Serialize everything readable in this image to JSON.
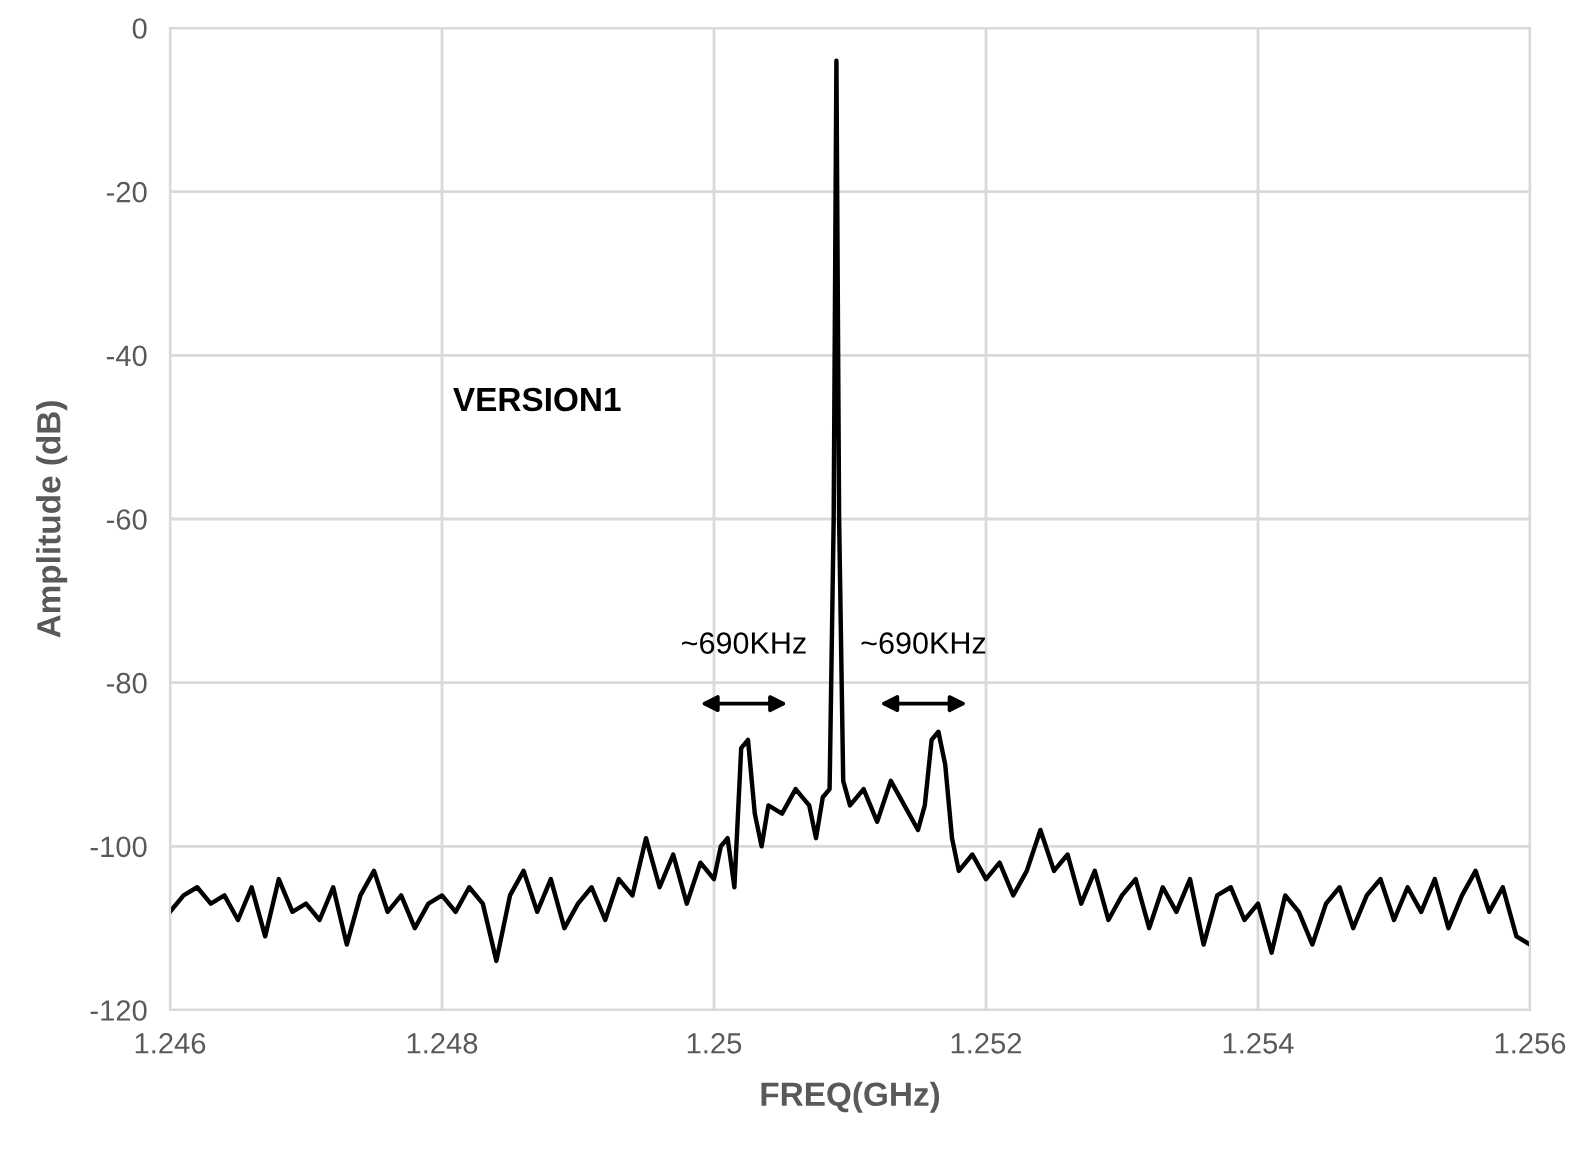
{
  "chart_data": {
    "type": "line",
    "xlabel": "FREQ(GHz)",
    "ylabel": "Amplitude (dB)",
    "annotations": [
      "VERSION1",
      "~690KHz",
      "~690KHz"
    ],
    "series": [
      {
        "color": "#000000",
        "x": [
          1.246,
          1.2461,
          1.2462,
          1.2463,
          1.2464,
          1.2465,
          1.2466,
          1.2467,
          1.2468,
          1.2469,
          1.247,
          1.2471,
          1.2472,
          1.2473,
          1.2474,
          1.2475,
          1.2476,
          1.2477,
          1.2478,
          1.2479,
          1.248,
          1.2481,
          1.2482,
          1.2483,
          1.2484,
          1.2485,
          1.2486,
          1.2487,
          1.2488,
          1.2489,
          1.249,
          1.2491,
          1.2492,
          1.2493,
          1.2494,
          1.2495,
          1.2496,
          1.2497,
          1.2498,
          1.2499,
          1.25,
          1.25005,
          1.2501,
          1.25015,
          1.2502,
          1.25025,
          1.2503,
          1.25035,
          1.2504,
          1.2505,
          1.2506,
          1.2507,
          1.25075,
          1.2508,
          1.25085,
          1.25088,
          1.2509,
          1.25092,
          1.25095,
          1.251,
          1.2511,
          1.2512,
          1.2513,
          1.2514,
          1.2515,
          1.25155,
          1.2516,
          1.25165,
          1.2517,
          1.25175,
          1.2518,
          1.2519,
          1.252,
          1.2521,
          1.2522,
          1.2523,
          1.2524,
          1.2525,
          1.2526,
          1.2527,
          1.2528,
          1.2529,
          1.253,
          1.2531,
          1.2532,
          1.2533,
          1.2534,
          1.2535,
          1.2536,
          1.2537,
          1.2538,
          1.2539,
          1.254,
          1.2541,
          1.2542,
          1.2543,
          1.2544,
          1.2545,
          1.2546,
          1.2547,
          1.2548,
          1.2549,
          1.255,
          1.2551,
          1.2552,
          1.2553,
          1.2554,
          1.2555,
          1.2556,
          1.2557,
          1.2558,
          1.2559,
          1.256
        ],
        "values": [
          -108,
          -106,
          -105,
          -107,
          -106,
          -109,
          -105,
          -111,
          -104,
          -108,
          -107,
          -109,
          -105,
          -112,
          -106,
          -103,
          -108,
          -106,
          -110,
          -107,
          -106,
          -108,
          -105,
          -107,
          -114,
          -106,
          -103,
          -108,
          -104,
          -110,
          -107,
          -105,
          -109,
          -104,
          -106,
          -99,
          -105,
          -101,
          -107,
          -102,
          -104,
          -100,
          -99,
          -105,
          -88,
          -87,
          -96,
          -100,
          -95,
          -96,
          -93,
          -95,
          -99,
          -94,
          -93,
          -60,
          -4,
          -60,
          -92,
          -95,
          -93,
          -97,
          -92,
          -95,
          -98,
          -95,
          -87,
          -86,
          -90,
          -99,
          -103,
          -101,
          -104,
          -102,
          -106,
          -103,
          -98,
          -103,
          -101,
          -107,
          -103,
          -109,
          -106,
          -104,
          -110,
          -105,
          -108,
          -104,
          -112,
          -106,
          -105,
          -109,
          -107,
          -113,
          -106,
          -108,
          -112,
          -107,
          -105,
          -110,
          -106,
          -104,
          -109,
          -105,
          -108,
          -104,
          -110,
          -106,
          -103,
          -108,
          -105,
          -111,
          -112
        ]
      }
    ],
    "xlim": [
      1.246,
      1.256
    ],
    "xticks": [
      1.246,
      1.248,
      1.25,
      1.252,
      1.254,
      1.256
    ],
    "ylim": [
      -120,
      0
    ],
    "yticks": [
      -120,
      -100,
      -80,
      -60,
      -40,
      -20,
      0
    ],
    "grid": true,
    "legend": false,
    "marker": "none",
    "line_style": "solid"
  }
}
